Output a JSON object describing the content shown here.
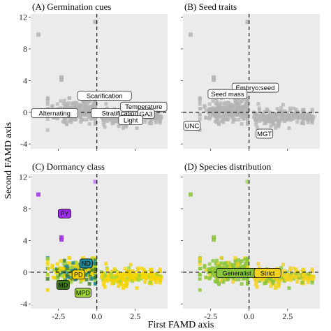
{
  "figure": {
    "xlabel": "First FAMD axis",
    "ylabel": "Second FAMD axis"
  },
  "colors": {
    "panel_bg": "#ebebeb",
    "grey_point": "#b3b3b3",
    "PY": "#9b30e0",
    "ND": "#1b8a9a",
    "PD": "#f5d400",
    "MD": "#3f7a1f",
    "MPD": "#9fd33a",
    "Generalist": "#8ac43a",
    "Strict": "#f0d21e"
  },
  "chart_data": [
    {
      "type": "scatter",
      "title": "(A) Germination cues",
      "xlim": [
        -4.3,
        4.6
      ],
      "ylim": [
        -4.6,
        12.4
      ],
      "x_ticks": [
        -2.5,
        0.0,
        2.5
      ],
      "x_tick_labels": [
        "",
        "",
        ""
      ],
      "y_ticks": [
        -4,
        0,
        4,
        8,
        12
      ],
      "y_tick_labels": [
        "-4",
        "0",
        "4",
        "8",
        "12"
      ],
      "grid": false,
      "reference_lines": {
        "x": 0,
        "y": 0
      },
      "point_cloud": "grey, dense near origin (x -2.5 to 4, y -2 to 2); outliers near (-3.8, 9.8), (-0.1, 11.4), (-2.3, 4.3)",
      "labels": [
        {
          "text": "Scarification",
          "x": 0.5,
          "y": 2.1
        },
        {
          "text": "Alternating",
          "x": -2.9,
          "y": -0.1
        },
        {
          "text": "Stratification",
          "x": 1.5,
          "y": -0.1
        },
        {
          "text": "Temperature",
          "x": 3.3,
          "y": 0.7
        },
        {
          "text": "GA3",
          "x": 3.2,
          "y": -0.2
        },
        {
          "text": "Light",
          "x": 2.2,
          "y": -1.0
        }
      ]
    },
    {
      "type": "scatter",
      "title": "(B) Seed traits",
      "xlim": [
        -4.3,
        4.6
      ],
      "ylim": [
        -4.6,
        12.4
      ],
      "x_ticks": [
        -2.5,
        0.0,
        2.5
      ],
      "x_tick_labels": [
        "",
        "",
        ""
      ],
      "y_ticks": [
        -4,
        0,
        4,
        8,
        12
      ],
      "y_tick_labels": [
        "",
        "",
        "",
        "",
        ""
      ],
      "grid": false,
      "reference_lines": {
        "x": 0,
        "y": 0
      },
      "point_cloud": "grey, same sample positions as panel A",
      "labels": [
        {
          "text": "Embryo:seed",
          "x": 0.4,
          "y": 3.1
        },
        {
          "text": "Seed mass",
          "x": -1.4,
          "y": 2.3
        },
        {
          "text": "UNC",
          "x": -4.0,
          "y": -1.7
        },
        {
          "text": "MGT",
          "x": 1.0,
          "y": -2.7
        }
      ]
    },
    {
      "type": "scatter",
      "title": "(C) Dormancy class",
      "xlim": [
        -4.3,
        4.6
      ],
      "ylim": [
        -4.6,
        12.4
      ],
      "x_ticks": [
        -2.5,
        0.0,
        2.5
      ],
      "x_tick_labels": [
        "-2.5",
        "0.0",
        "2.5"
      ],
      "y_ticks": [
        -4,
        0,
        4,
        8,
        12
      ],
      "y_tick_labels": [
        "-4",
        "0",
        "4",
        "8",
        "12"
      ],
      "grid": false,
      "reference_lines": {
        "x": 0,
        "y": 0
      },
      "groups": [
        {
          "name": "PY",
          "label_x": -2.1,
          "label_y": 7.4
        },
        {
          "name": "ND",
          "label_x": -0.7,
          "label_y": 1.1
        },
        {
          "name": "PD",
          "label_x": -1.2,
          "label_y": -0.3
        },
        {
          "name": "MD",
          "label_x": -2.2,
          "label_y": -1.6
        },
        {
          "name": "MPD",
          "label_x": -0.9,
          "label_y": -2.6
        }
      ]
    },
    {
      "type": "scatter",
      "title": "(D) Species distribution",
      "xlim": [
        -4.3,
        4.6
      ],
      "ylim": [
        -4.6,
        12.4
      ],
      "x_ticks": [
        -2.5,
        0.0,
        2.5
      ],
      "x_tick_labels": [
        "-2.5",
        "0.0",
        "2.5"
      ],
      "y_ticks": [
        -4,
        0,
        4,
        8,
        12
      ],
      "y_tick_labels": [
        "",
        "",
        "",
        "",
        ""
      ],
      "grid": false,
      "reference_lines": {
        "x": 0,
        "y": 0
      },
      "groups": [
        {
          "name": "Generalist",
          "label_x": -0.8,
          "label_y": -0.1
        },
        {
          "name": "Strict",
          "label_x": 1.2,
          "label_y": -0.1
        }
      ]
    }
  ]
}
